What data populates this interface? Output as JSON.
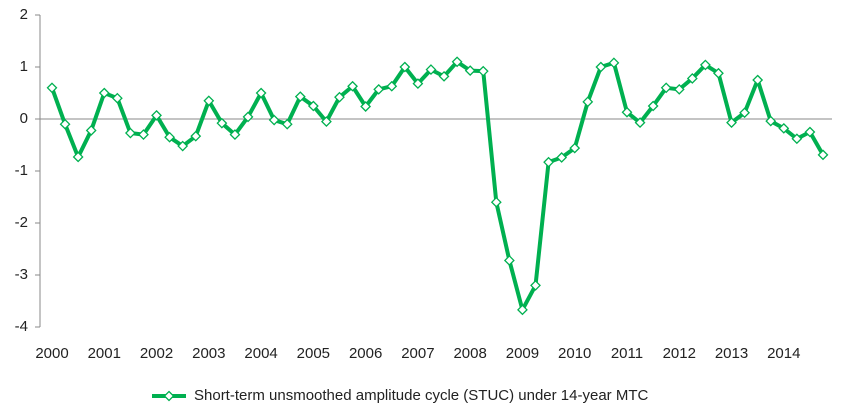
{
  "chart_data": {
    "type": "line",
    "categories": [
      "2000",
      null,
      null,
      null,
      "2001",
      null,
      null,
      null,
      "2002",
      null,
      null,
      null,
      "2003",
      null,
      null,
      null,
      "2004",
      null,
      null,
      null,
      "2005",
      null,
      null,
      null,
      "2006",
      null,
      null,
      null,
      "2007",
      null,
      null,
      null,
      "2008",
      null,
      null,
      null,
      "2009",
      null,
      null,
      null,
      "2010",
      null,
      null,
      null,
      "2011",
      null,
      null,
      null,
      "2012",
      null,
      null,
      null,
      "2013",
      null,
      null,
      null,
      "2014",
      null,
      null,
      null
    ],
    "series": [
      {
        "name": "Short-term unsmoothed amplitude cycle (STUC) under 14-year MTC",
        "color": "#00b050",
        "values": [
          0.6,
          -0.1,
          -0.73,
          -0.22,
          0.5,
          0.4,
          -0.27,
          -0.3,
          0.07,
          -0.35,
          -0.52,
          -0.33,
          0.35,
          -0.08,
          -0.3,
          0.04,
          0.5,
          -0.02,
          -0.1,
          0.43,
          0.25,
          -0.05,
          0.42,
          0.63,
          0.24,
          0.57,
          0.63,
          1.0,
          0.68,
          0.95,
          0.82,
          1.1,
          0.93,
          0.92,
          -1.6,
          -2.72,
          -3.67,
          -3.2,
          -0.83,
          -0.74,
          -0.56,
          0.33,
          1.0,
          1.08,
          0.13,
          -0.07,
          0.25,
          0.6,
          0.57,
          0.78,
          1.04,
          0.88,
          -0.07,
          0.12,
          0.75,
          -0.04,
          -0.18,
          -0.38,
          -0.25,
          -0.69
        ]
      }
    ],
    "ylim": [
      -4,
      2
    ],
    "yticks": [
      -4,
      -3,
      -2,
      -1,
      0,
      1,
      2
    ],
    "grid": false,
    "legend": "bottom"
  }
}
